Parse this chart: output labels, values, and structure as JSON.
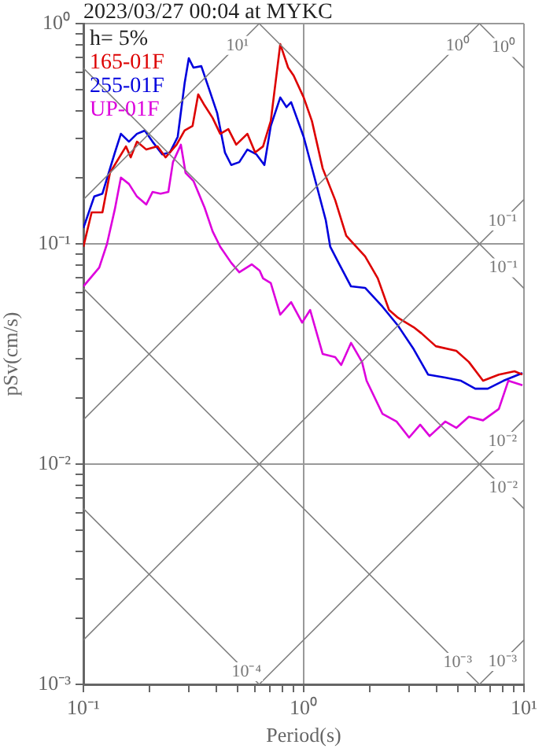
{
  "chart_data": {
    "type": "line",
    "title": "2023/03/27 00:04 at MYKC",
    "xlabel": "Period(s)",
    "ylabel": "pSv(cm/s)",
    "log": "xy",
    "grid": true,
    "legend": "top left",
    "xlim": [
      0.1,
      10
    ],
    "ylim": [
      0.001,
      1
    ],
    "xticks": [
      {
        "value": 0.1,
        "label": "10⁻¹"
      },
      {
        "value": 0.2,
        "label": null
      },
      {
        "value": 0.3,
        "label": null
      },
      {
        "value": 0.4,
        "label": null
      },
      {
        "value": 0.5,
        "label": null
      },
      {
        "value": 0.6,
        "label": null
      },
      {
        "value": 0.7,
        "label": null
      },
      {
        "value": 0.8,
        "label": null
      },
      {
        "value": 0.9,
        "label": null
      },
      {
        "value": 1,
        "label": "10⁰"
      },
      {
        "value": 2,
        "label": null
      },
      {
        "value": 3,
        "label": null
      },
      {
        "value": 4,
        "label": null
      },
      {
        "value": 5,
        "label": null
      },
      {
        "value": 6,
        "label": null
      },
      {
        "value": 7,
        "label": null
      },
      {
        "value": 8,
        "label": null
      },
      {
        "value": 9,
        "label": null
      },
      {
        "value": 10,
        "label": "10¹"
      }
    ],
    "yticks": [
      {
        "value": 0.001,
        "label": "10⁻³"
      },
      {
        "value": 0.002,
        "label": null
      },
      {
        "value": 0.003,
        "label": null
      },
      {
        "value": 0.004,
        "label": null
      },
      {
        "value": 0.005,
        "label": null
      },
      {
        "value": 0.006,
        "label": null
      },
      {
        "value": 0.007,
        "label": null
      },
      {
        "value": 0.008,
        "label": null
      },
      {
        "value": 0.009,
        "label": null
      },
      {
        "value": 0.01,
        "label": "10⁻²"
      },
      {
        "value": 0.02,
        "label": null
      },
      {
        "value": 0.03,
        "label": null
      },
      {
        "value": 0.04,
        "label": null
      },
      {
        "value": 0.05,
        "label": null
      },
      {
        "value": 0.06,
        "label": null
      },
      {
        "value": 0.07,
        "label": null
      },
      {
        "value": 0.08,
        "label": null
      },
      {
        "value": 0.09,
        "label": null
      },
      {
        "value": 0.1,
        "label": "10⁻¹"
      },
      {
        "value": 0.2,
        "label": null
      },
      {
        "value": 0.3,
        "label": null
      },
      {
        "value": 0.4,
        "label": null
      },
      {
        "value": 0.5,
        "label": null
      },
      {
        "value": 0.6,
        "label": null
      },
      {
        "value": 0.7,
        "label": null
      },
      {
        "value": 0.8,
        "label": null
      },
      {
        "value": 0.9,
        "label": null
      },
      {
        "value": 1,
        "label": "10⁰"
      }
    ],
    "series": [
      {
        "type": "line",
        "color": "#808080",
        "x": [
          6.28,
          10
        ],
        "values": [
          1,
          0.628
        ]
      },
      {
        "type": "line",
        "color": "#808080",
        "x": [
          0.628,
          10
        ],
        "values": [
          1,
          0.0628
        ]
      },
      {
        "type": "line",
        "color": "#808080",
        "x": [
          0.1,
          10
        ],
        "values": [
          0.628,
          0.00628
        ]
      },
      {
        "type": "line",
        "color": "#808080",
        "x": [
          0.1,
          6.28
        ],
        "values": [
          0.0628,
          0.001
        ]
      },
      {
        "type": "line",
        "color": "#808080",
        "x": [
          0.1,
          0.628
        ],
        "values": [
          0.00628,
          0.001
        ]
      },
      {
        "type": "line",
        "color": "#808080",
        "x": [
          0.1,
          0.628
        ],
        "values": [
          0.159,
          1
        ]
      },
      {
        "type": "line",
        "color": "#808080",
        "x": [
          0.1,
          6.28
        ],
        "values": [
          0.0159,
          1
        ]
      },
      {
        "type": "line",
        "color": "#808080",
        "x": [
          0.1,
          10
        ],
        "values": [
          0.00159,
          0.159
        ]
      },
      {
        "type": "line",
        "color": "#808080",
        "x": [
          0.628,
          10
        ],
        "values": [
          0.001,
          0.0159
        ]
      },
      {
        "type": "line",
        "color": "#808080",
        "x": [
          6.28,
          10
        ],
        "values": [
          0.001,
          0.00159
        ]
      },
      {
        "name": "165-01F",
        "color": "#dd0000",
        "x": [
          0.1,
          0.109,
          0.122,
          0.132,
          0.156,
          0.164,
          0.175,
          0.193,
          0.217,
          0.236,
          0.265,
          0.288,
          0.313,
          0.332,
          0.355,
          0.386,
          0.418,
          0.455,
          0.494,
          0.555,
          0.602,
          0.654,
          0.709,
          0.783,
          0.85,
          0.9,
          1.0,
          1.09,
          1.22,
          1.39,
          1.56,
          1.64,
          1.9,
          2.17,
          2.44,
          2.68,
          3.16,
          3.43,
          3.98,
          4.93,
          5.62,
          6.52,
          7.69,
          9.06,
          9.84
        ],
        "values": [
          0.097,
          0.139,
          0.139,
          0.21,
          0.277,
          0.247,
          0.291,
          0.268,
          0.277,
          0.247,
          0.282,
          0.327,
          0.343,
          0.477,
          0.425,
          0.373,
          0.316,
          0.332,
          0.282,
          0.316,
          0.26,
          0.277,
          0.361,
          0.807,
          0.631,
          0.581,
          0.462,
          0.361,
          0.22,
          0.158,
          0.109,
          0.103,
          0.0877,
          0.0697,
          0.0501,
          0.0462,
          0.0418,
          0.0392,
          0.0343,
          0.0327,
          0.0291,
          0.0239,
          0.0255,
          0.0264,
          0.0255
        ]
      },
      {
        "name": "255-01F",
        "color": "#0000dd",
        "x": [
          0.1,
          0.112,
          0.122,
          0.139,
          0.148,
          0.161,
          0.175,
          0.19,
          0.206,
          0.228,
          0.247,
          0.268,
          0.288,
          0.301,
          0.316,
          0.343,
          0.373,
          0.405,
          0.439,
          0.469,
          0.51,
          0.555,
          0.61,
          0.663,
          0.709,
          0.783,
          0.835,
          0.877,
          1.0,
          1.12,
          1.26,
          1.32,
          1.44,
          1.64,
          1.9,
          2.28,
          2.68,
          3.16,
          3.67,
          4.39,
          5.18,
          6.01,
          6.85,
          8.07,
          9.84
        ],
        "values": [
          0.118,
          0.164,
          0.169,
          0.26,
          0.316,
          0.291,
          0.316,
          0.327,
          0.291,
          0.255,
          0.26,
          0.306,
          0.535,
          0.696,
          0.631,
          0.641,
          0.501,
          0.392,
          0.26,
          0.228,
          0.235,
          0.268,
          0.255,
          0.228,
          0.343,
          0.462,
          0.418,
          0.44,
          0.306,
          0.2,
          0.128,
          0.097,
          0.082,
          0.0641,
          0.0631,
          0.0518,
          0.0425,
          0.0332,
          0.0255,
          0.0247,
          0.0239,
          0.022,
          0.022,
          0.0239,
          0.0259
        ]
      },
      {
        "name": "UP-01F",
        "color": "#dd00dd",
        "x": [
          0.1,
          0.118,
          0.128,
          0.139,
          0.148,
          0.161,
          0.175,
          0.193,
          0.206,
          0.224,
          0.243,
          0.255,
          0.277,
          0.291,
          0.316,
          0.355,
          0.386,
          0.418,
          0.469,
          0.51,
          0.581,
          0.631,
          0.654,
          0.709,
          0.783,
          0.877,
          0.984,
          1.07,
          1.22,
          1.39,
          1.48,
          1.64,
          1.84,
          1.93,
          2.28,
          2.64,
          3.01,
          3.38,
          3.73,
          4.39,
          4.93,
          5.62,
          6.52,
          7.69,
          8.49,
          9.84
        ],
        "values": [
          0.0641,
          0.0781,
          0.1,
          0.144,
          0.2,
          0.187,
          0.164,
          0.151,
          0.172,
          0.169,
          0.172,
          0.235,
          0.282,
          0.21,
          0.193,
          0.146,
          0.114,
          0.097,
          0.082,
          0.0743,
          0.0807,
          0.0756,
          0.0697,
          0.0663,
          0.0477,
          0.0544,
          0.0439,
          0.0501,
          0.0316,
          0.0306,
          0.0282,
          0.0355,
          0.0291,
          0.0239,
          0.0169,
          0.0156,
          0.0132,
          0.0151,
          0.0134,
          0.0156,
          0.0146,
          0.0164,
          0.0158,
          0.0178,
          0.0239,
          0.0228
        ]
      }
    ],
    "annotations": [
      "h= 5%",
      {
        "text": "10⁰",
        "x": 8.07,
        "y": 0.778
      },
      {
        "text": "10⁻¹",
        "x": 8.07,
        "y": 0.0778
      },
      {
        "text": "10⁻²",
        "x": 8.07,
        "y": 0.00778
      },
      {
        "text": "10⁻³",
        "x": 5,
        "y": 0.00126
      },
      {
        "text": "10⁻⁴",
        "x": 0.55,
        "y": 0.00114
      },
      {
        "text": "10¹",
        "x": 0.5,
        "y": 0.796
      },
      {
        "text": "10⁰",
        "x": 5,
        "y": 0.796
      },
      {
        "text": "10⁻¹",
        "x": 8,
        "y": 0.127
      },
      {
        "text": "10⁻²",
        "x": 8,
        "y": 0.0127
      },
      {
        "text": "10⁻³",
        "x": 8,
        "y": 0.00127
      }
    ]
  }
}
